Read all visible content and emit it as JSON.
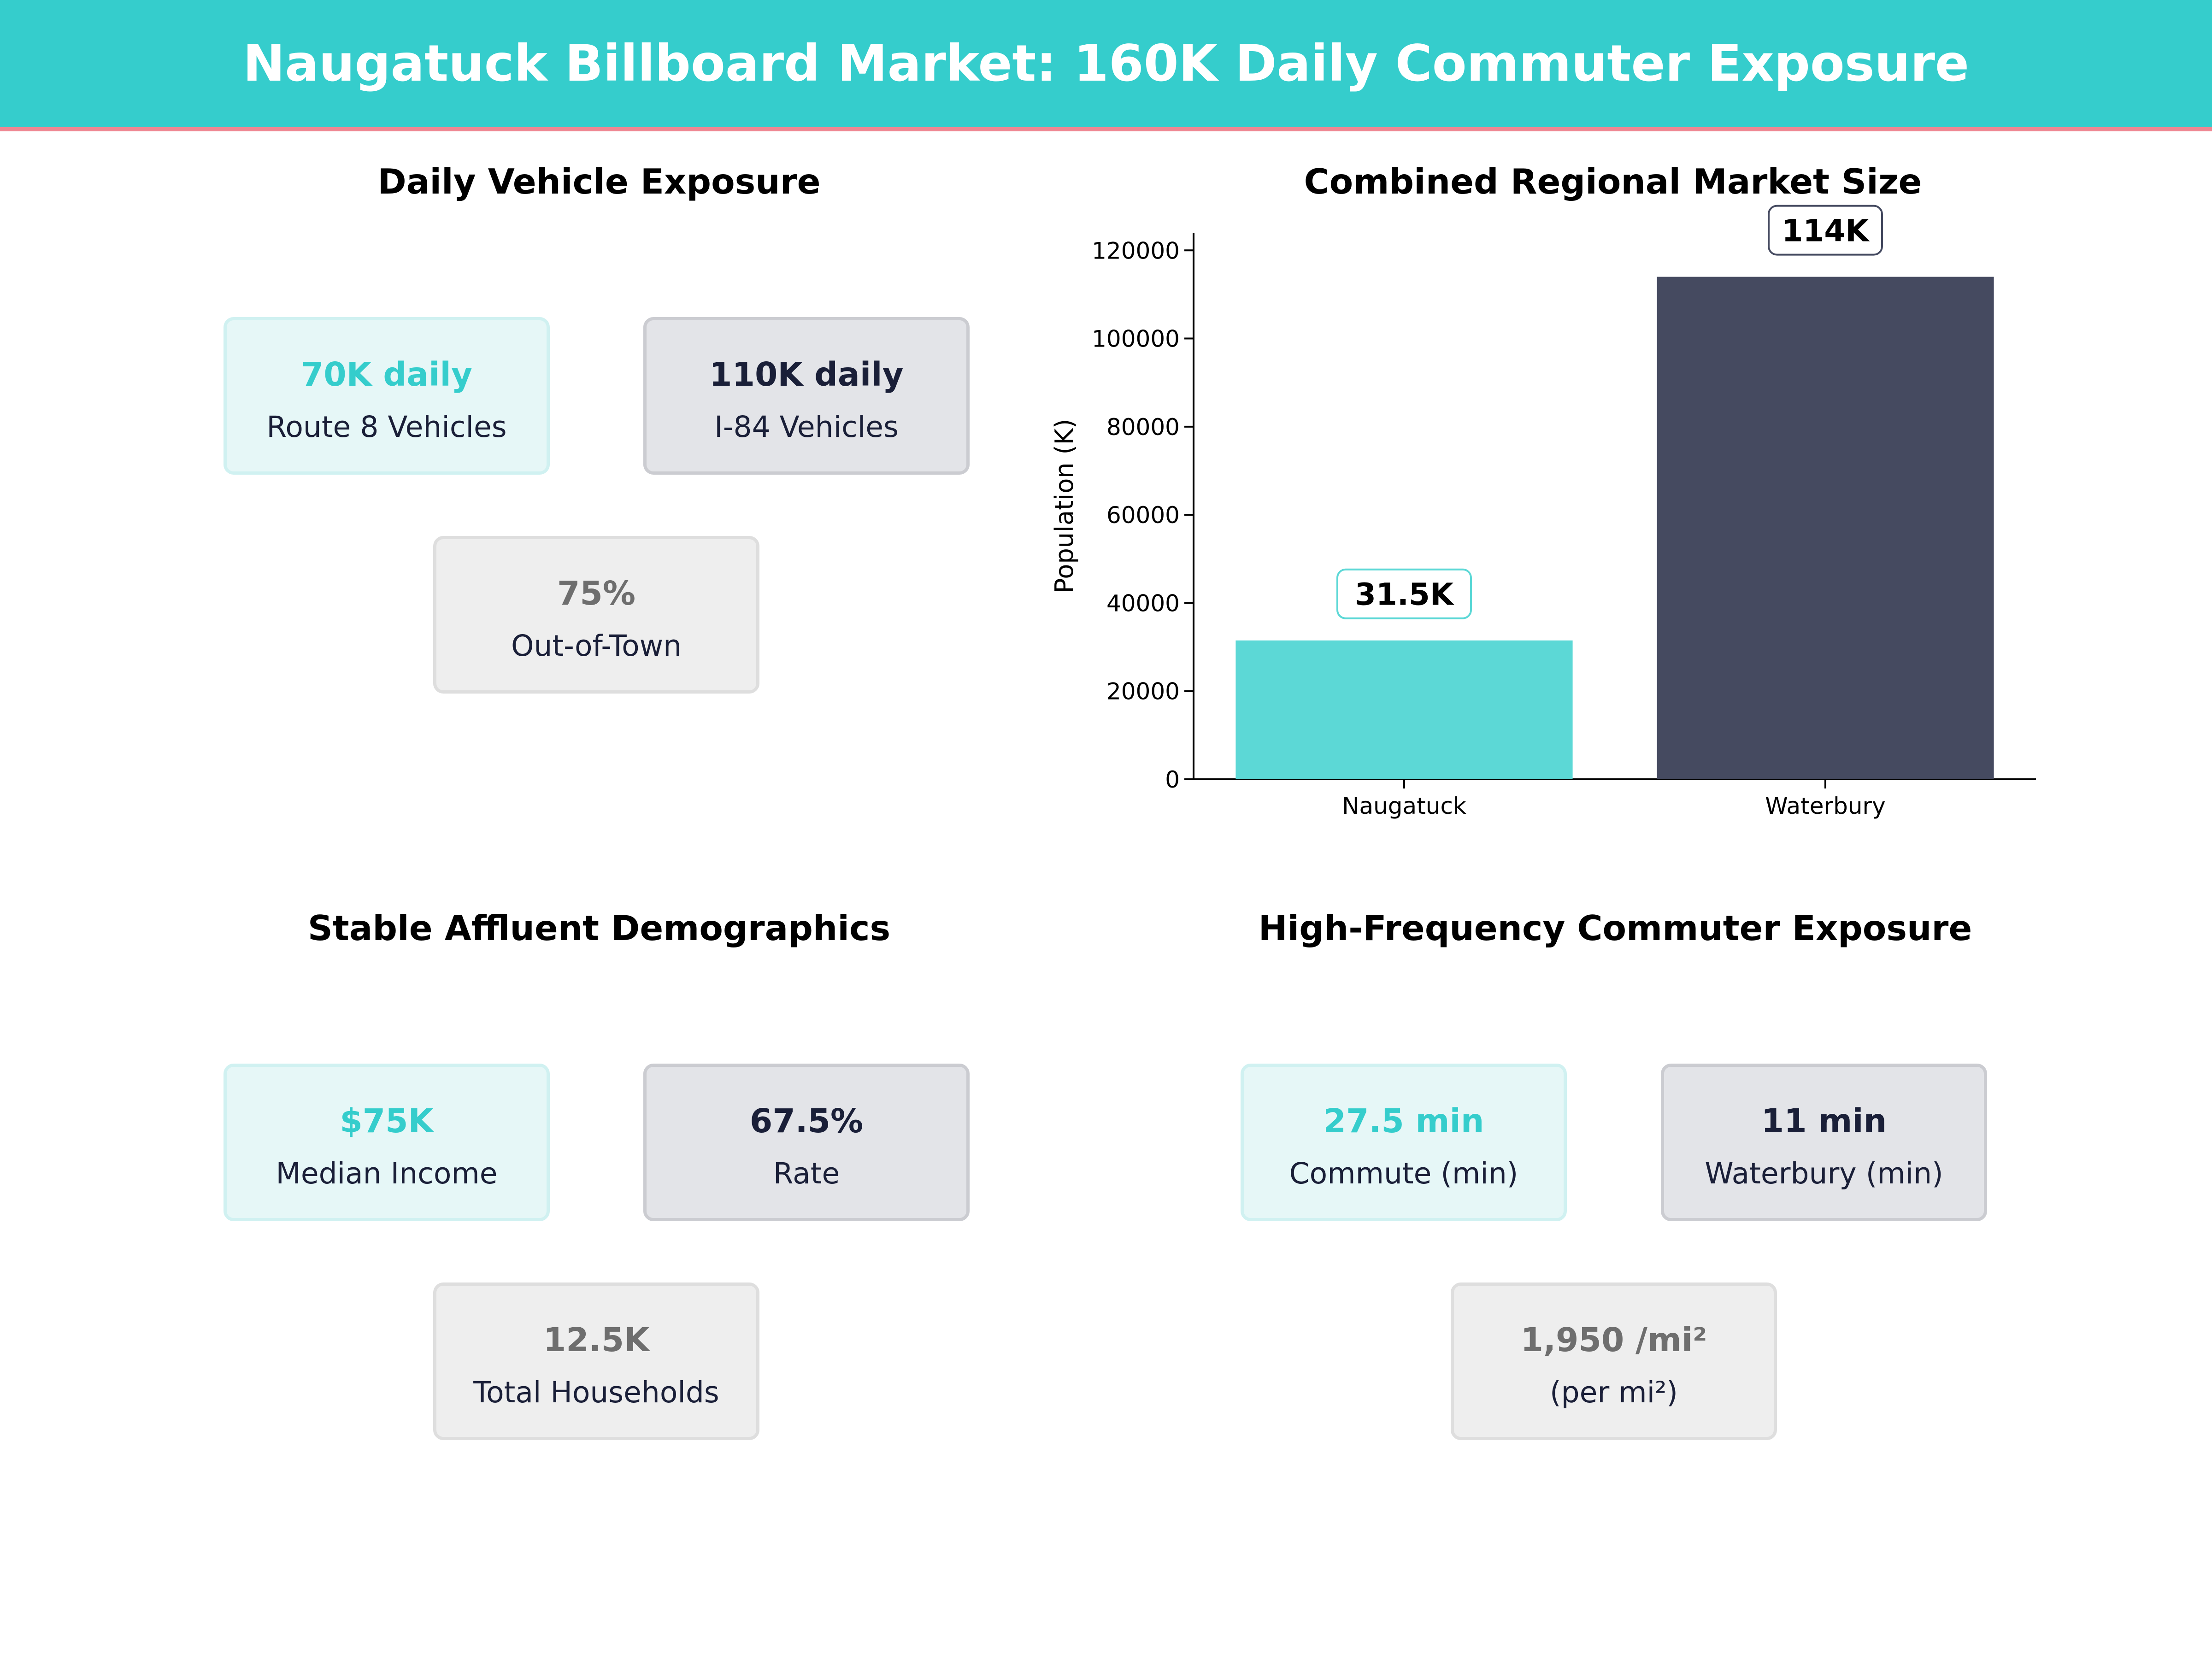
{
  "header": {
    "title": "Naugatuck Billboard Market: 160K Daily Commuter Exposure"
  },
  "colors": {
    "teal": "#35CDCC",
    "navy": "#1A1F38",
    "grey": "#6E6E6E",
    "accent_rule": "#EF8792",
    "bar_teal": "#5CD8D6",
    "bar_navy": "#454A60"
  },
  "panels": {
    "vehicle": {
      "title": "Daily Vehicle Exposure",
      "cards": [
        {
          "value": "70K daily",
          "label": "Route 8 Vehicles"
        },
        {
          "value": "110K daily",
          "label": "I-84 Vehicles"
        },
        {
          "value": "75%",
          "label": "Out-of-Town"
        }
      ]
    },
    "market": {
      "title": "Combined Regional Market Size"
    },
    "demographics": {
      "title": "Stable Affluent Demographics",
      "cards": [
        {
          "value": "$75K",
          "label": "Median Income"
        },
        {
          "value": "67.5%",
          "label": "Rate"
        },
        {
          "value": "12.5K",
          "label": "Total Households"
        }
      ]
    },
    "commuter": {
      "title": "High-Frequency Commuter Exposure",
      "cards": [
        {
          "value": "27.5 min",
          "label": "Commute (min)"
        },
        {
          "value": "11 min",
          "label": "Waterbury (min)"
        },
        {
          "value": "1,950 /mi²",
          "label": "(per mi²)"
        }
      ]
    }
  },
  "chart_data": {
    "type": "bar",
    "title": "Combined Regional Market Size",
    "categories": [
      "Naugatuck",
      "Waterbury"
    ],
    "values": [
      31500,
      114000
    ],
    "data_labels": [
      "31.5K",
      "114K"
    ],
    "xlabel": "",
    "ylabel": "Population (K)",
    "ylim": [
      0,
      124000
    ],
    "yticks": [
      0,
      20000,
      40000,
      60000,
      80000,
      100000,
      120000
    ],
    "ytick_labels": [
      "0",
      "20000",
      "40000",
      "60000",
      "80000",
      "100000",
      "120000"
    ],
    "grid": false,
    "bar_colors": [
      "#5CD8D6",
      "#454A60"
    ],
    "label_border_colors": [
      "#5CD8D6",
      "#454A60"
    ]
  }
}
